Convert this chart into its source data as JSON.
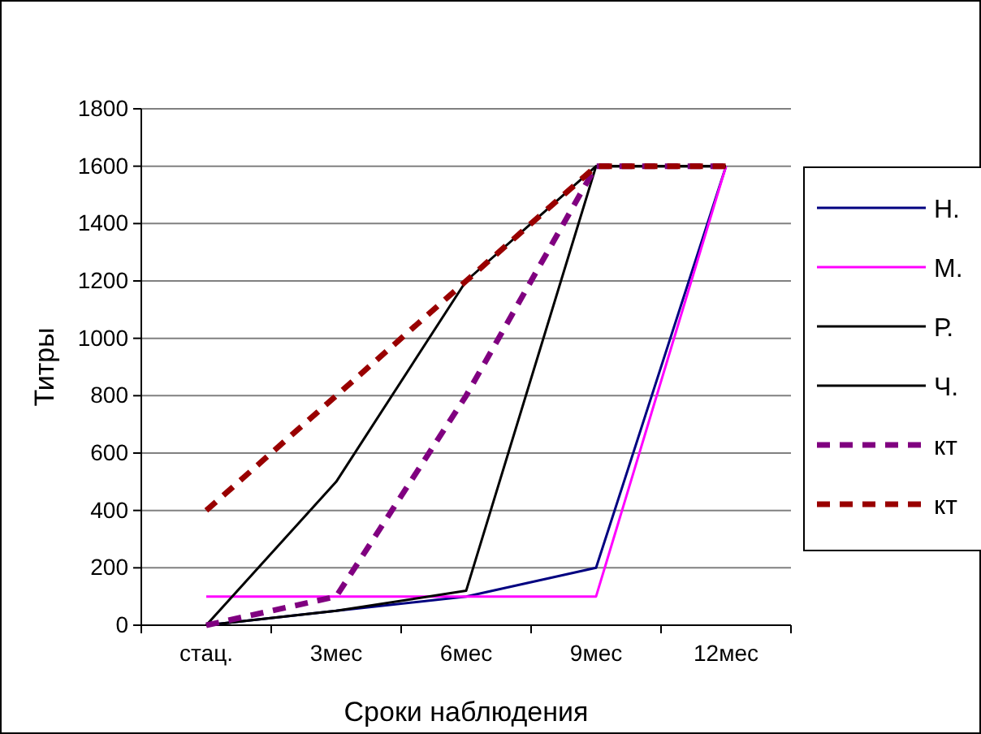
{
  "chart_data": {
    "type": "line",
    "xlabel": "Сроки наблюдения",
    "ylabel": "Титры",
    "categories": [
      "стац.",
      "3мес",
      "6мес",
      "9мес",
      "12мес"
    ],
    "series": [
      {
        "name": "Н.",
        "color": "#000080",
        "values": [
          0,
          50,
          100,
          200,
          1600
        ]
      },
      {
        "name": "М.",
        "color": "#ff00ff",
        "values": [
          100,
          100,
          100,
          100,
          1600
        ]
      },
      {
        "name": "Р.",
        "color": "#000000",
        "values": [
          0,
          500,
          1200,
          1600,
          1600
        ]
      },
      {
        "name": "Ч.",
        "color": "#000000",
        "values": [
          0,
          50,
          120,
          1600,
          1600
        ]
      },
      {
        "name": "кт",
        "color": "#800080",
        "values": [
          0,
          100,
          800,
          1600,
          1600
        ],
        "line_style": "dashed"
      },
      {
        "name": "кт",
        "color": "#990000",
        "values": [
          400,
          800,
          1200,
          1600,
          1600
        ],
        "line_style": "dashed"
      }
    ],
    "ylim": [
      0,
      1800
    ],
    "yticks": [
      0,
      200,
      400,
      600,
      800,
      1000,
      1200,
      1400,
      1600,
      1800
    ],
    "grid": "y",
    "legend": "right",
    "marker": "none",
    "line_style": "solid"
  }
}
